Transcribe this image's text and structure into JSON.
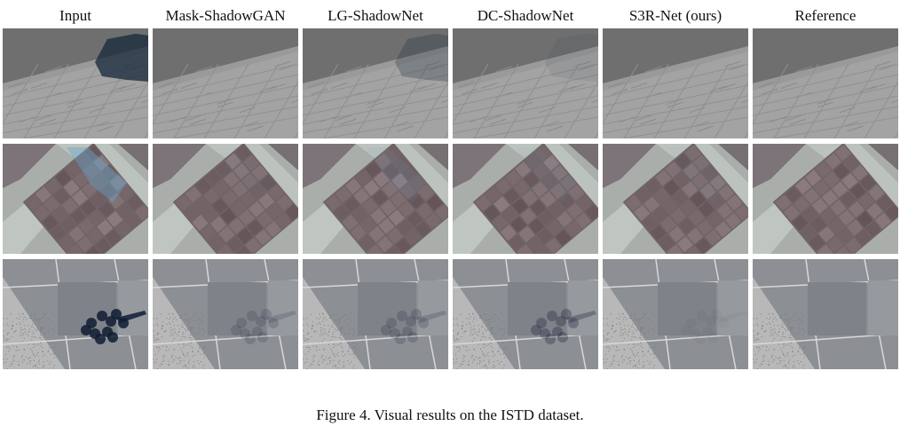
{
  "figure": {
    "columns": [
      "Input",
      "Mask-ShadowGAN",
      "LG-ShadowNet",
      "DC-ShadowNet",
      "S3R-Net (ours)",
      "Reference"
    ],
    "caption": "Figure 4. Visual results on the ISTD dataset.",
    "rows": [
      {
        "scene": "paved-stone-with-curb",
        "shadow_visibility": [
          1.0,
          0.0,
          0.35,
          0.12,
          0.0,
          0.0
        ]
      },
      {
        "scene": "tiled-square-with-light-paths",
        "shadow_visibility": [
          1.0,
          0.05,
          0.25,
          0.15,
          0.08,
          0.0
        ]
      },
      {
        "scene": "granite-slabs",
        "shadow_visibility": [
          1.0,
          0.2,
          0.22,
          0.35,
          0.05,
          0.0
        ]
      }
    ]
  }
}
